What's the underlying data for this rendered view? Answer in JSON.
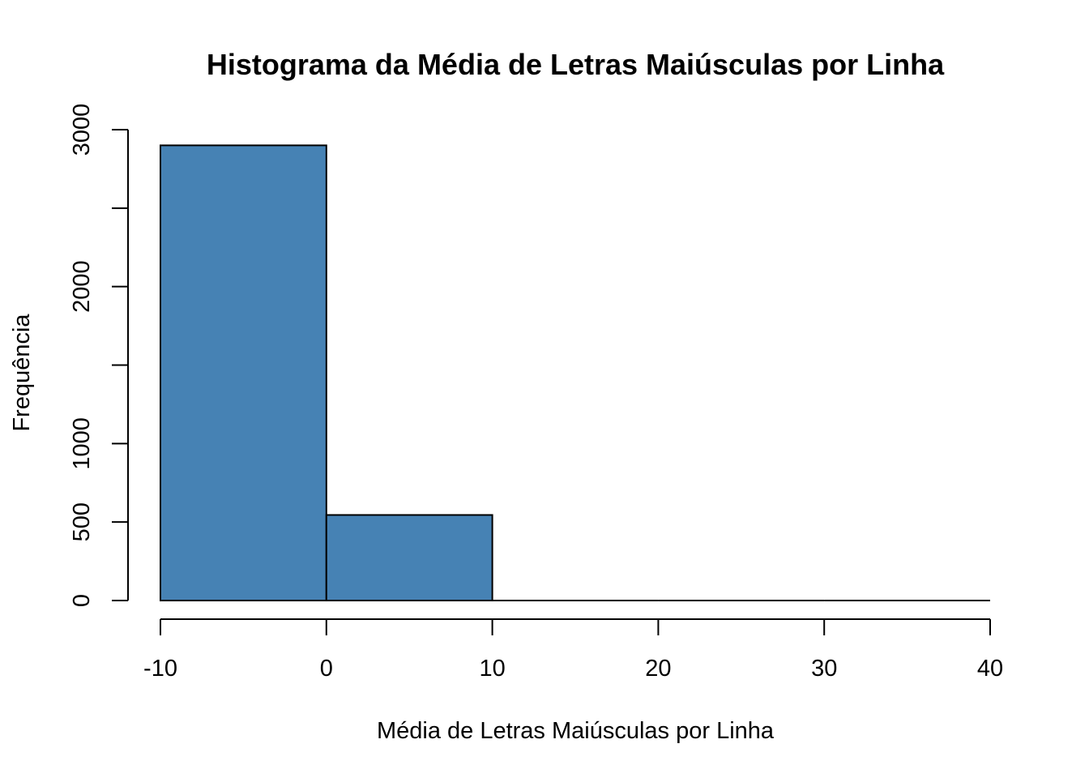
{
  "chart_data": {
    "type": "bar",
    "title": "Histograma da Média de Letras Maiúsculas por Linha",
    "xlabel": "Média de Letras Maiúsculas por Linha",
    "ylabel": "Frequência",
    "xlim": [
      -10,
      40
    ],
    "ylim": [
      0,
      3000
    ],
    "x_ticks": [
      -10,
      0,
      10,
      20,
      30,
      40
    ],
    "x_tick_labels": [
      "-10",
      "0",
      "10",
      "20",
      "30",
      "40"
    ],
    "y_ticks": [
      0,
      500,
      1000,
      1500,
      2000,
      2500,
      3000
    ],
    "y_tick_labels": [
      "0",
      "500",
      "1000",
      "",
      "2000",
      "",
      "3000"
    ],
    "bins": [
      {
        "from": -10,
        "to": 0,
        "value": 2900
      },
      {
        "from": 0,
        "to": 10,
        "value": 545
      },
      {
        "from": 10,
        "to": 20,
        "value": 0
      },
      {
        "from": 20,
        "to": 30,
        "value": 0
      },
      {
        "from": 30,
        "to": 40,
        "value": 0
      }
    ],
    "bar_color": "#4682B4",
    "grid": false,
    "legend": "none"
  }
}
